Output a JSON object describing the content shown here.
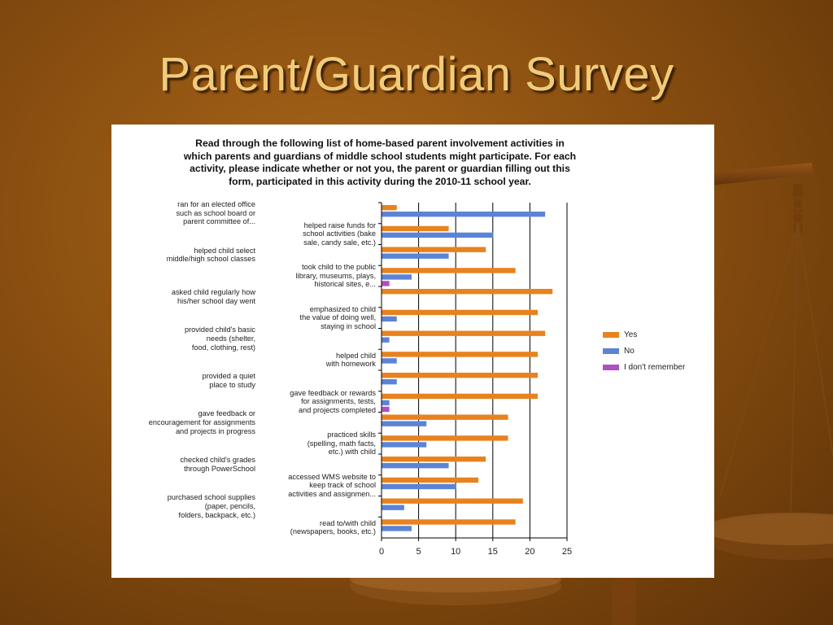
{
  "slide": {
    "title": "Parent/Guardian Survey"
  },
  "chart_data": {
    "type": "bar",
    "orientation": "horizontal",
    "title_lines": [
      "Read through the following list of home-based parent involvement activities in",
      "which parents and guardians of middle school students might participate.   For each",
      "activity, please indicate whether or not you, the parent or guardian filling out this",
      "form, participated in this activity during the 2010-11 school year."
    ],
    "xlim": [
      0,
      25
    ],
    "x_ticks": [
      0,
      5,
      10,
      15,
      20,
      25
    ],
    "grid": "vertical",
    "legend_position": "right",
    "categories": [
      {
        "lines": [
          "ran for an elected office",
          "such as school board or",
          "parent committee of..."
        ]
      },
      {
        "lines": [
          "helped raise funds for",
          "school activities (bake",
          "sale, candy sale, etc.)"
        ]
      },
      {
        "lines": [
          "helped child select",
          "middle/high school classes"
        ]
      },
      {
        "lines": [
          "took child to the public",
          "library, museums, plays,",
          "historical sites, e..."
        ]
      },
      {
        "lines": [
          "asked child regularly how",
          "his/her school day went"
        ]
      },
      {
        "lines": [
          "emphasized to child",
          "the value of doing well,",
          "staying in school"
        ]
      },
      {
        "lines": [
          "provided child's basic",
          "needs (shelter,",
          "food, clothing, rest)"
        ]
      },
      {
        "lines": [
          "helped child",
          "with homework"
        ]
      },
      {
        "lines": [
          "provided a quiet",
          "place to study"
        ]
      },
      {
        "lines": [
          "gave feedback or rewards",
          "for assignments, tests,",
          "and projects completed"
        ]
      },
      {
        "lines": [
          "gave feedback or",
          "encouragement for assignments",
          "and projects in progress"
        ]
      },
      {
        "lines": [
          "practiced skills",
          "(spelling, math facts,",
          "etc.) with child"
        ]
      },
      {
        "lines": [
          "checked child's grades",
          "through PowerSchool"
        ]
      },
      {
        "lines": [
          "accessed WMS website to",
          "keep track of school",
          "activities and assignmen..."
        ]
      },
      {
        "lines": [
          "purchased school supplies",
          "(paper, pencils,",
          "folders, backpack, etc.)"
        ]
      },
      {
        "lines": [
          "read to/with child",
          "(newspapers, books, etc.)"
        ]
      }
    ],
    "series": [
      {
        "name": "Yes",
        "color": "#e8821e",
        "values": [
          2,
          9,
          14,
          18,
          23,
          21,
          22,
          21,
          21,
          21,
          17,
          17,
          14,
          13,
          19,
          18
        ]
      },
      {
        "name": "No",
        "color": "#5b84d6",
        "values": [
          22,
          15,
          9,
          4,
          0,
          2,
          1,
          2,
          2,
          1,
          6,
          6,
          9,
          10,
          3,
          4
        ]
      },
      {
        "name": "I don't remember",
        "color": "#b04fc4",
        "values": [
          0,
          0,
          0,
          1,
          0,
          0,
          0,
          0,
          0,
          1,
          0,
          0,
          0,
          0,
          0,
          0
        ]
      }
    ]
  }
}
